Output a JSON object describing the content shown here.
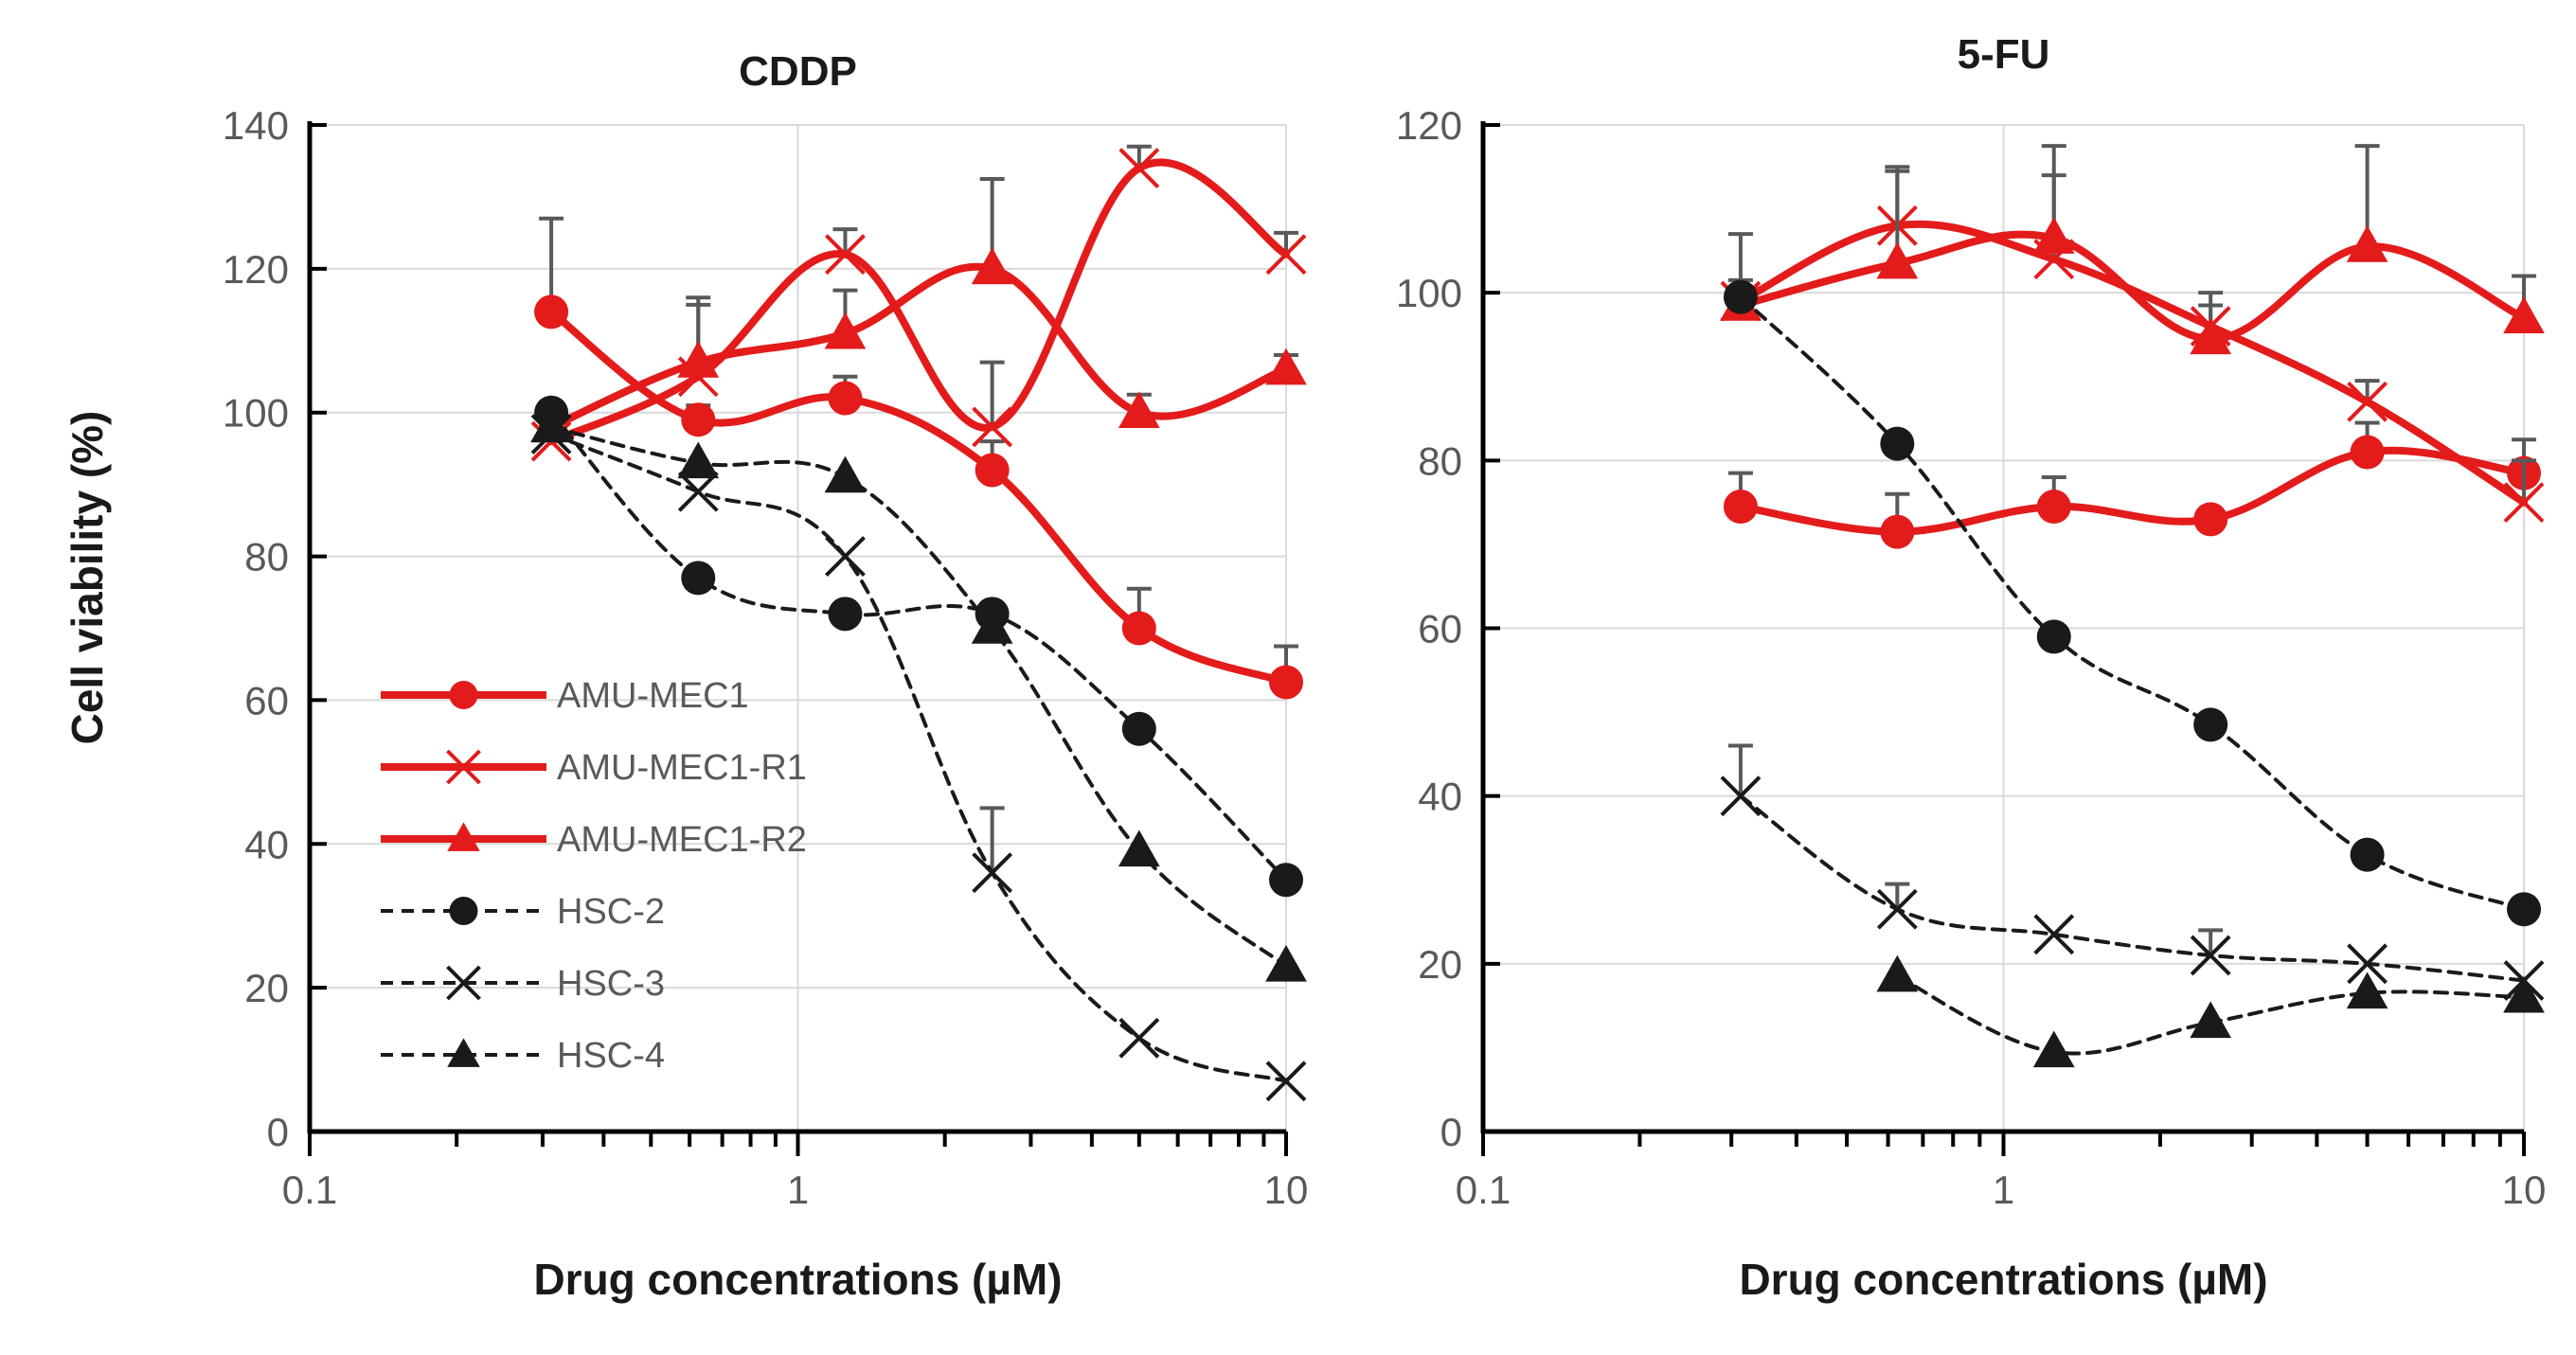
{
  "colors": {
    "red": "#e31b1b",
    "black": "#1a1a1a"
  },
  "y_axis_label": "Cell viability (%)",
  "chart_data": [
    {
      "type": "line",
      "title": "CDDP",
      "xlabel": "Drug concentrations (µM)",
      "xscale": "log",
      "xlim": [
        0.1,
        10
      ],
      "xticks": [
        0.1,
        1,
        10
      ],
      "xtick_labels": [
        "0.1",
        "1",
        "10"
      ],
      "ylim": [
        0,
        140
      ],
      "yticks": [
        0,
        20,
        40,
        60,
        80,
        100,
        120,
        140
      ],
      "ytick_labels": [
        "0",
        "20",
        "40",
        "60",
        "80",
        "100",
        "120",
        "140"
      ],
      "grid": true,
      "legend_position": "lower-left",
      "x": [
        0.3125,
        0.625,
        1.25,
        2.5,
        5,
        10
      ],
      "series": [
        {
          "name": "AMU-MEC1",
          "color": "red",
          "style": "solid",
          "marker": "circle",
          "values": [
            114,
            99,
            102,
            92,
            70,
            62.5
          ],
          "errors": [
            13,
            2,
            3,
            4,
            5.5,
            5
          ]
        },
        {
          "name": "AMU-MEC1-R1",
          "color": "red",
          "style": "solid",
          "marker": "x",
          "values": [
            96,
            105,
            122,
            98,
            134,
            122
          ],
          "errors": [
            2,
            10,
            3.5,
            9,
            3,
            3
          ]
        },
        {
          "name": "AMU-MEC1-R2",
          "color": "red",
          "style": "solid",
          "marker": "triangle",
          "values": [
            98,
            107,
            111,
            120,
            100,
            106
          ],
          "errors": [
            2,
            9,
            6,
            12.5,
            2.5,
            2
          ]
        },
        {
          "name": "HSC-2",
          "color": "black",
          "style": "dashed",
          "marker": "circle",
          "values": [
            100,
            77,
            72,
            72,
            56,
            35
          ],
          "errors": [
            0,
            0,
            0,
            0,
            0,
            0
          ]
        },
        {
          "name": "HSC-3",
          "color": "black",
          "style": "dashed",
          "marker": "x",
          "values": [
            97,
            89,
            80,
            36,
            13,
            7
          ],
          "errors": [
            0,
            0,
            0,
            9,
            0,
            0
          ]
        },
        {
          "name": "HSC-4",
          "color": "black",
          "style": "dashed",
          "marker": "triangle",
          "values": [
            98,
            93,
            91,
            70,
            39,
            23
          ],
          "errors": [
            0,
            0,
            0,
            0,
            0,
            0
          ]
        }
      ]
    },
    {
      "type": "line",
      "title": "5-FU",
      "xlabel": "Drug concentrations (µM)",
      "xscale": "log",
      "xlim": [
        0.1,
        10
      ],
      "xticks": [
        0.1,
        1,
        10
      ],
      "xtick_labels": [
        "0.1",
        "1",
        "10"
      ],
      "ylim": [
        0,
        120
      ],
      "yticks": [
        0,
        20,
        40,
        60,
        80,
        100,
        120
      ],
      "ytick_labels": [
        "0",
        "20",
        "40",
        "60",
        "80",
        "100",
        "120"
      ],
      "grid": true,
      "legend_position": "none",
      "x": [
        0.3125,
        0.625,
        1.25,
        2.5,
        5,
        10
      ],
      "series": [
        {
          "name": "AMU-MEC1",
          "color": "red",
          "style": "solid",
          "marker": "circle",
          "values": [
            74.5,
            71.5,
            74.5,
            73,
            81,
            78.5
          ],
          "errors": [
            4,
            4.5,
            3.5,
            0,
            3.5,
            4
          ]
        },
        {
          "name": "AMU-MEC1-R1",
          "color": "red",
          "style": "solid",
          "marker": "x",
          "values": [
            99,
            108,
            104,
            96,
            87,
            75
          ],
          "errors": [
            8,
            7,
            10,
            4,
            2.5,
            5
          ]
        },
        {
          "name": "AMU-MEC1-R2",
          "color": "red",
          "style": "solid",
          "marker": "triangle",
          "values": [
            98.5,
            103.5,
            106.5,
            94.5,
            105.5,
            97
          ],
          "errors": [
            3,
            11,
            11,
            4,
            12,
            5
          ]
        },
        {
          "name": "HSC-2",
          "color": "black",
          "style": "dashed",
          "marker": "circle",
          "values": [
            99.5,
            82,
            59,
            48.5,
            33,
            26.5
          ],
          "errors": [
            0,
            0,
            0,
            0,
            0,
            0
          ]
        },
        {
          "name": "HSC-3",
          "color": "black",
          "style": "dashed",
          "marker": "x",
          "values": [
            40,
            26.5,
            23.5,
            21,
            20,
            18
          ],
          "errors": [
            6,
            3,
            0,
            3,
            0,
            0
          ]
        },
        {
          "name": "HSC-4",
          "color": "black",
          "style": "dashed",
          "marker": "triangle",
          "values": [
            null,
            18.5,
            9.5,
            13,
            16.5,
            16
          ],
          "errors": [
            0,
            0,
            0,
            0,
            0,
            0
          ]
        }
      ]
    }
  ]
}
